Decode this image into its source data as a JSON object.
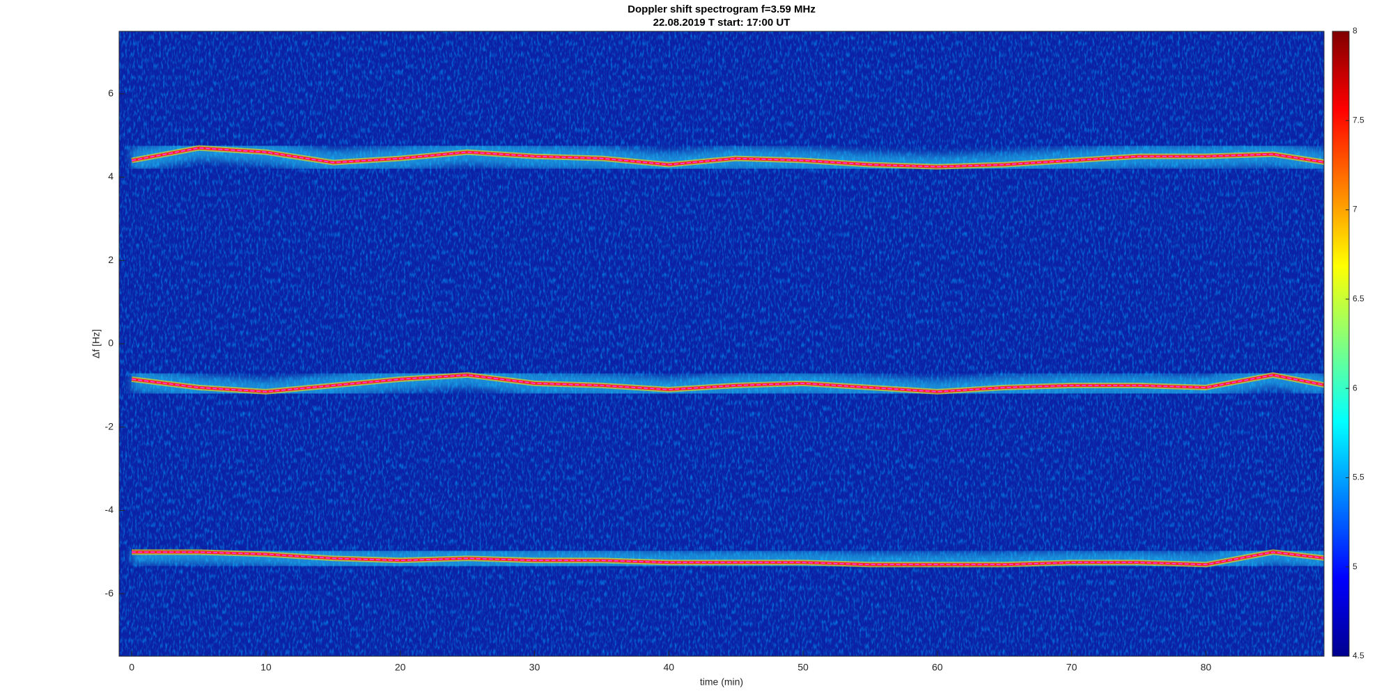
{
  "chart_data": {
    "type": "spectrogram",
    "title": "Doppler shift spectrogram f=3.59 MHz",
    "subtitle": "22.08.2019    T start: 17:00 UT",
    "xlabel": "time (min)",
    "ylabel": "Δf [Hz]",
    "x": [
      0,
      5,
      10,
      15,
      20,
      25,
      30,
      35,
      40,
      45,
      50,
      55,
      60,
      65,
      70,
      75,
      80,
      85,
      89
    ],
    "series": [
      {
        "color": "#ff3cff",
        "values": [
          4.4,
          4.7,
          4.6,
          4.35,
          4.45,
          4.6,
          4.5,
          4.45,
          4.3,
          4.45,
          4.4,
          4.3,
          4.25,
          4.3,
          4.4,
          4.5,
          4.5,
          4.55,
          4.35
        ]
      },
      {
        "color": "#ff3cff",
        "values": [
          -0.85,
          -1.05,
          -1.15,
          -1.0,
          -0.85,
          -0.75,
          -0.95,
          -1.0,
          -1.1,
          -1.0,
          -0.95,
          -1.05,
          -1.15,
          -1.05,
          -1.0,
          -1.0,
          -1.05,
          -0.75,
          -1.0
        ]
      },
      {
        "color": "#ff3cff",
        "values": [
          -5.0,
          -5.0,
          -5.05,
          -5.15,
          -5.2,
          -5.15,
          -5.2,
          -5.2,
          -5.25,
          -5.25,
          -5.25,
          -5.3,
          -5.3,
          -5.3,
          -5.25,
          -5.25,
          -5.3,
          -5.0,
          -5.15
        ]
      }
    ],
    "xlim": [
      -0.94,
      88.8
    ],
    "xticks": [
      0,
      10,
      20,
      30,
      40,
      50,
      60,
      70,
      80
    ],
    "ylim": [
      -7.5,
      7.5
    ],
    "yticks": [
      -6,
      -4,
      -2,
      0,
      2,
      4,
      6
    ],
    "background": "#0b22a6",
    "colorbar": {
      "lim": [
        4.5,
        8
      ],
      "ticks": [
        4.5,
        5,
        5.5,
        6,
        6.5,
        7,
        7.5,
        8
      ],
      "colors": [
        "#00008f",
        "#0000ff",
        "#0080ff",
        "#00ffff",
        "#80ff80",
        "#ffff00",
        "#ff8000",
        "#ff0000",
        "#800000"
      ]
    }
  }
}
